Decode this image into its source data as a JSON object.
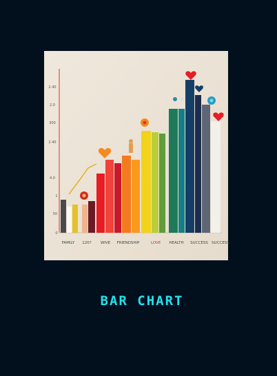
{
  "illustration": {
    "y_labels": [
      "2.40",
      "2.0",
      "300",
      "2.40",
      "4.0",
      "1",
      "50",
      "0"
    ],
    "x_labels": [
      "FAMILY",
      "120?",
      "WIVE",
      "FRIENDSHIP",
      "LOVE",
      "HEALTH",
      "SUCCESS",
      "SUCCESS"
    ]
  },
  "caption": "BAR CHART"
}
